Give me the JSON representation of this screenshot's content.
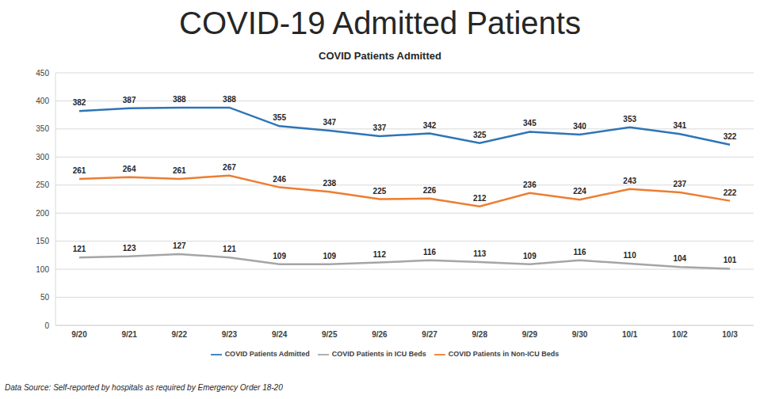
{
  "chart_data": {
    "type": "line",
    "title": "COVID-19 Admitted Patients",
    "subtitle": "COVID Patients Admitted",
    "annotations": [
      "Data Source: Self-reported by hospitals as required by Emergency Order 18-20"
    ],
    "categories": [
      "9/20",
      "9/21",
      "9/22",
      "9/23",
      "9/24",
      "9/25",
      "9/26",
      "9/27",
      "9/28",
      "9/29",
      "9/30",
      "10/1",
      "10/2",
      "10/3"
    ],
    "series": [
      {
        "name": "COVID Patients Admitted",
        "color": "#2e75b6",
        "values": [
          382,
          387,
          388,
          388,
          355,
          347,
          337,
          342,
          325,
          345,
          340,
          353,
          341,
          322
        ]
      },
      {
        "name": "COVID Patients in ICU Beds",
        "color": "#a5a5a5",
        "values": [
          121,
          123,
          127,
          121,
          109,
          109,
          112,
          116,
          113,
          109,
          116,
          110,
          104,
          101
        ]
      },
      {
        "name": "COVID Patients in Non-ICU Beds",
        "color": "#ed7d31",
        "values": [
          261,
          264,
          261,
          267,
          246,
          238,
          225,
          226,
          212,
          236,
          224,
          243,
          237,
          222
        ]
      }
    ],
    "ylim": [
      0,
      450
    ],
    "yticks": [
      0,
      50,
      100,
      150,
      200,
      250,
      300,
      350,
      400,
      450
    ],
    "grid": true,
    "legend": "bottom",
    "data_labels": true,
    "marker": "none",
    "line_style": "solid"
  }
}
